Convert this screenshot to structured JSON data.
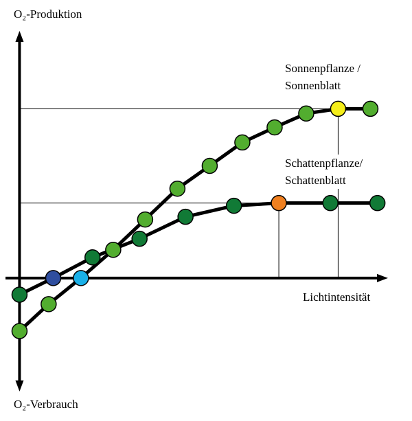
{
  "chart_data": {
    "type": "line",
    "ylabel_top": "O₂-Produktion",
    "ylabel_bottom": "O₂-Verbrauch",
    "xlabel": "Lichtintensität",
    "xlim": [
      -4,
      105
    ],
    "ylim": [
      -67,
      146
    ],
    "grid": false,
    "series": [
      {
        "name": "Sonnenpflanze / Sonnenblatt",
        "label_lines": [
          "Sonnenpflanze /",
          "Sonnenblatt"
        ],
        "color": "#52ad2f",
        "x": [
          0,
          8.3,
          17.5,
          26.7,
          35.8,
          45,
          54.2,
          63.5,
          72.7,
          81.7,
          90.8,
          100
        ],
        "y": [
          -31.3,
          -15.4,
          0,
          16.7,
          34.6,
          52.8,
          66.3,
          80.1,
          89,
          97.2,
          100,
          100
        ],
        "highlight": {
          "compensation_point_index": 2,
          "compensation_color": "#1ab0e8",
          "saturation_point_index": 10,
          "saturation_color": "#f5ee1a"
        }
      },
      {
        "name": "Schattenpflanze/ Schattenblatt",
        "label_lines": [
          "Schattenpflanze/",
          "Schattenblatt"
        ],
        "color": "#117a36",
        "x": [
          0,
          9.6,
          20.8,
          34.2,
          47.3,
          61.1,
          73.9,
          88.6,
          102
        ],
        "y": [
          -9.8,
          0,
          12.2,
          23.2,
          36.2,
          42.7,
          44.3,
          44.3,
          44.3
        ],
        "highlight": {
          "compensation_point_index": 1,
          "compensation_color": "#2f4e9f",
          "saturation_point_index": 6,
          "saturation_color": "#f08020"
        }
      }
    ]
  }
}
